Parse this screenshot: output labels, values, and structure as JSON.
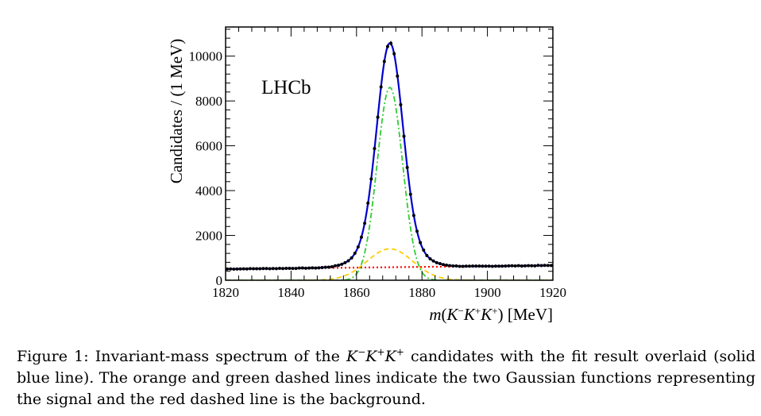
{
  "figure": {
    "label": "Figure 1:",
    "caption_pre": "Invariant-mass spectrum of the",
    "caption_formula": "K−K+K+",
    "caption_post": "candidates with the fit result overlaid (solid blue line). The orange and green dashed lines indicate the two Gaussian functions representing the signal and the red dashed line is the background."
  },
  "colors": {
    "fit_total": "#0000cc",
    "signal_gauss_wide": "#ffcc00",
    "signal_gauss_narrow": "#33cc33",
    "background": "#ff0000",
    "data_points": "#000000"
  },
  "chart_data": {
    "type": "scatter",
    "title": "",
    "annotation": "LHCb",
    "xlabel_parts": {
      "m": "m",
      "open": "(",
      "k1": "K",
      "s1": "−",
      "k2": "K",
      "s2": "+",
      "k3": "K",
      "s3": "+",
      "close": ")",
      "unit": " [MeV]"
    },
    "ylabel": "Candidates / (1 MeV)",
    "xlim": [
      1820,
      1920
    ],
    "ylim": [
      0,
      11300
    ],
    "xticks": [
      1820,
      1840,
      1860,
      1880,
      1900,
      1920
    ],
    "yticks": [
      0,
      2000,
      4000,
      6000,
      8000,
      10000
    ],
    "model": {
      "mean": 1870.2,
      "narrow_gauss": {
        "amplitude": 8600,
        "sigma": 3.9
      },
      "wide_gauss": {
        "amplitude": 1400,
        "sigma": 7.0
      },
      "background": {
        "at_xmin": 500,
        "at_xmax": 660
      }
    },
    "series": [
      {
        "name": "data",
        "bin_width_mev": 1,
        "values_from_model": true
      },
      {
        "name": "total fit",
        "style": "solid"
      },
      {
        "name": "narrow signal Gaussian",
        "style": "dash-dot"
      },
      {
        "name": "wide signal Gaussian",
        "style": "dashed"
      },
      {
        "name": "background",
        "style": "dotted"
      }
    ]
  }
}
